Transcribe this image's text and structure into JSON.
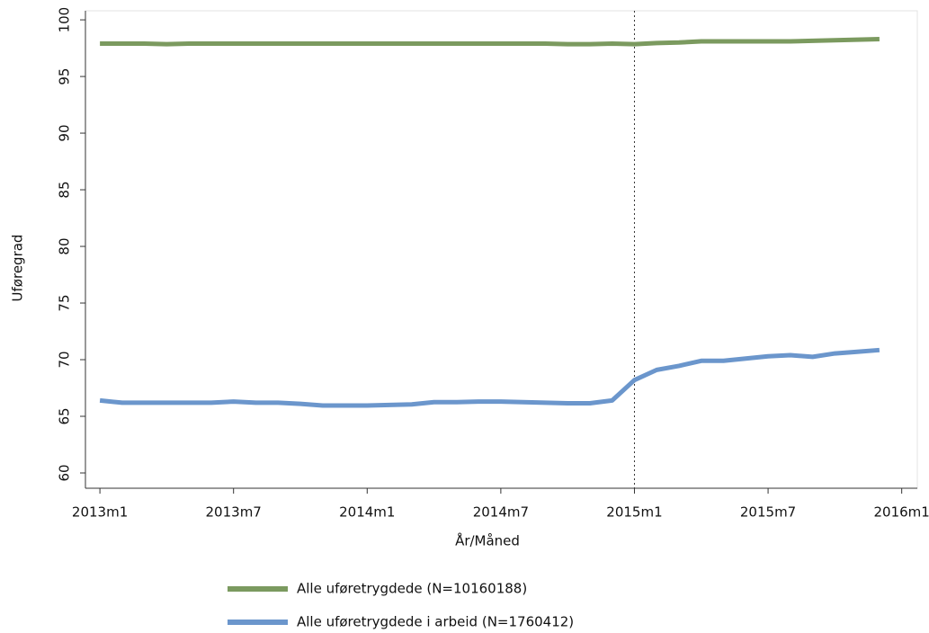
{
  "chart_data": {
    "type": "line",
    "xlabel": "År/Måned",
    "ylabel": "Uføregrad",
    "x": [
      0,
      1,
      2,
      3,
      4,
      5,
      6,
      7,
      8,
      9,
      10,
      11,
      12,
      13,
      14,
      15,
      16,
      17,
      18,
      19,
      20,
      21,
      22,
      23,
      24,
      25,
      26,
      27,
      28,
      29,
      30,
      31,
      32,
      33,
      34,
      35
    ],
    "xlim": [
      -0.65,
      36.7
    ],
    "xticks": [
      {
        "value": 0,
        "label": "2013m1"
      },
      {
        "value": 6,
        "label": "2013m7"
      },
      {
        "value": 12,
        "label": "2014m1"
      },
      {
        "value": 18,
        "label": "2014m7"
      },
      {
        "value": 24,
        "label": "2015m1"
      },
      {
        "value": 30,
        "label": "2015m7"
      },
      {
        "value": 36,
        "label": "2016m1"
      }
    ],
    "ylim": [
      58.65,
      100.8
    ],
    "yticks": [
      60,
      65,
      70,
      75,
      80,
      85,
      90,
      95,
      100
    ],
    "vline": 24,
    "series": [
      {
        "name": "Alle uføretrygdede (N=10160188)",
        "color": "#7b9a5f",
        "values": [
          97.9,
          97.9,
          97.9,
          97.85,
          97.9,
          97.9,
          97.9,
          97.9,
          97.9,
          97.9,
          97.9,
          97.9,
          97.9,
          97.9,
          97.9,
          97.9,
          97.9,
          97.9,
          97.9,
          97.9,
          97.9,
          97.85,
          97.85,
          97.9,
          97.85,
          97.95,
          98.0,
          98.1,
          98.1,
          98.1,
          98.1,
          98.1,
          98.15,
          98.2,
          98.25,
          98.3
        ]
      },
      {
        "name": "Alle uføretrygdede i arbeid (N=1760412)",
        "color": "#6b96cc",
        "values": [
          66.4,
          66.2,
          66.2,
          66.2,
          66.2,
          66.2,
          66.3,
          66.2,
          66.2,
          66.1,
          65.95,
          65.95,
          65.95,
          66.0,
          66.05,
          66.25,
          66.25,
          66.3,
          66.3,
          66.25,
          66.2,
          66.15,
          66.15,
          66.4,
          68.2,
          69.1,
          69.45,
          69.9,
          69.9,
          70.1,
          70.3,
          70.4,
          70.25,
          70.55,
          70.7,
          70.85
        ]
      }
    ]
  }
}
